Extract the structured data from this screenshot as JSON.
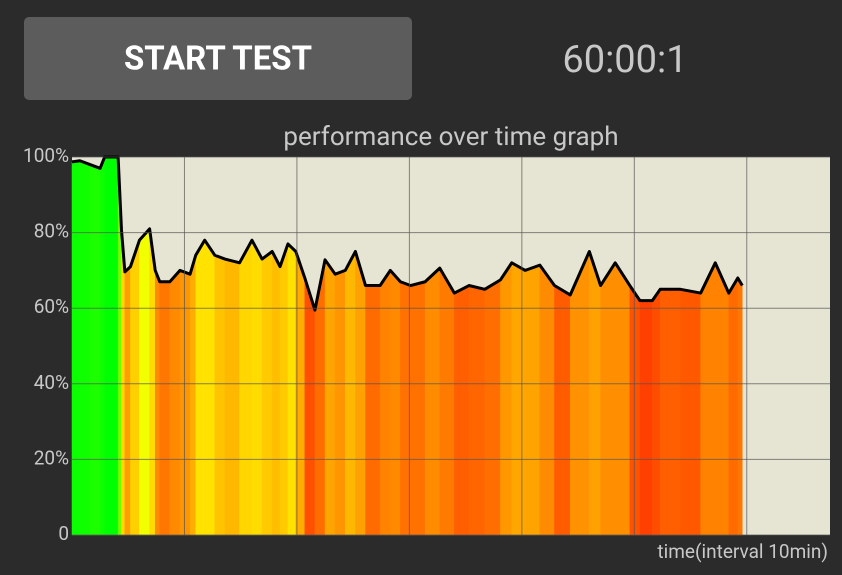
{
  "button": "START TEST",
  "timer": "60:00:1",
  "chart_data": {
    "type": "area-line",
    "title": "performance over time graph",
    "xlabel": "time(interval 10min)",
    "x": [
      0,
      0.7,
      1.6,
      2.5,
      2.9,
      4.1,
      4.4,
      4.7,
      5.2,
      6.0,
      6.9,
      7.4,
      7.8,
      8.7,
      9.6,
      10.5,
      11.0,
      11.8,
      12.7,
      13.6,
      14.9,
      16.0,
      16.9,
      17.8,
      18.5,
      19.2,
      19.9,
      20.7,
      21.6,
      22.5,
      23.4,
      24.3,
      25.2,
      26.1,
      27.4,
      28.3,
      29.2,
      30.1,
      31.4,
      32.7,
      34.0,
      35.3,
      36.7,
      38.1,
      39.1,
      40.3,
      41.6,
      42.9,
      44.3,
      46.0,
      47.0,
      48.3,
      49.6,
      50.5,
      51.6,
      52.3,
      54.1,
      55.9,
      57.2,
      58.4,
      59.2,
      59.6
    ],
    "series": [
      {
        "name": "performance",
        "color": "#000000",
        "values": [
          98.7,
          99,
          98,
          97,
          100,
          100,
          80.7,
          69.6,
          71,
          78,
          81,
          70,
          67,
          67,
          70,
          69,
          74,
          78,
          74,
          73,
          72,
          78,
          73,
          75,
          71,
          77,
          75,
          68,
          59.5,
          72.8,
          69,
          70,
          75,
          66,
          66,
          70,
          67,
          66,
          67,
          70.6,
          64,
          66,
          65,
          67.5,
          72,
          70,
          71.4,
          66,
          63.5,
          75,
          66,
          72,
          66,
          62,
          62,
          65,
          65,
          64,
          72,
          64,
          68,
          66
        ]
      }
    ],
    "xlim": [
      0,
      67.4
    ],
    "xgrid": [
      10,
      20,
      30,
      40,
      50,
      60
    ],
    "ylim": [
      0,
      100
    ],
    "yticks": [
      0,
      {
        "value": 20,
        "label": "20%"
      },
      {
        "value": 40,
        "label": "40%"
      },
      {
        "value": 60,
        "label": "60%"
      },
      {
        "value": 80,
        "label": "80%"
      },
      {
        "value": 100,
        "label": "100%"
      }
    ],
    "grid": true
  }
}
